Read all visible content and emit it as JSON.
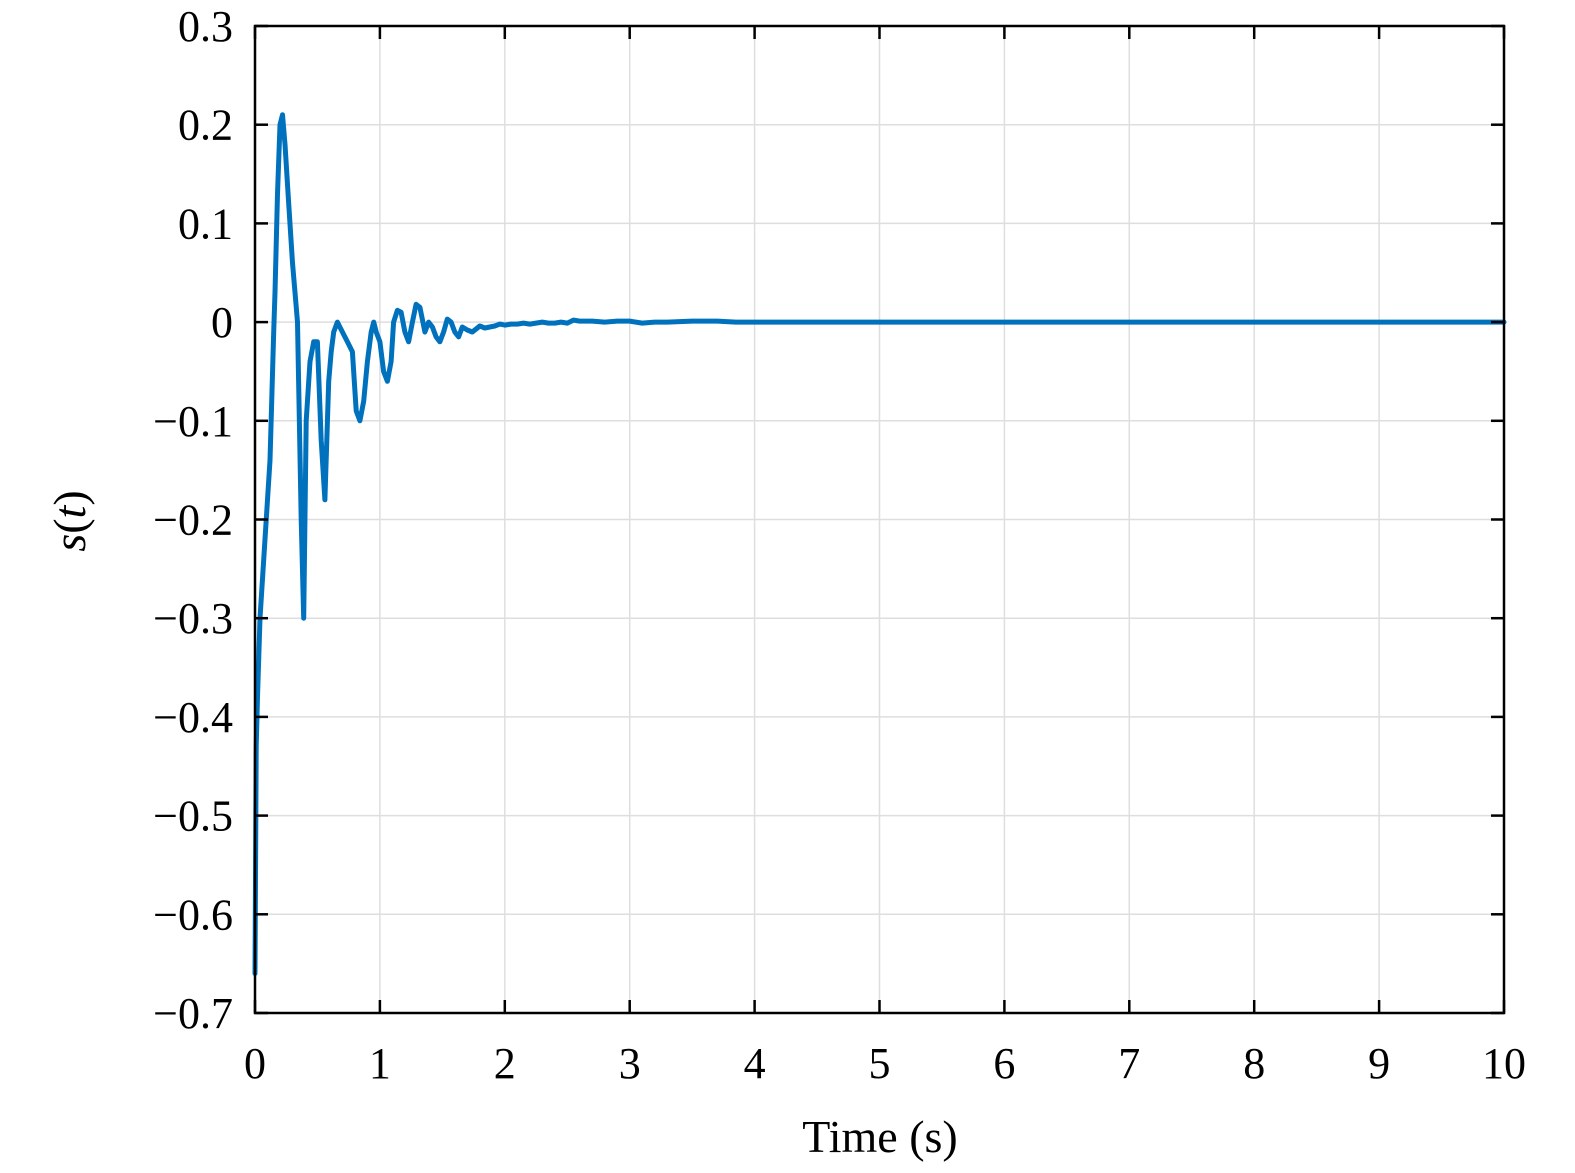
{
  "chart_data": {
    "type": "line",
    "title": "",
    "xlabel": "Time (s)",
    "ylabel": "s(t)",
    "ylabel_parts": {
      "func": "s",
      "open": "(",
      "var": "t",
      "close": ")"
    },
    "xlim": [
      0,
      10
    ],
    "ylim": [
      -0.7,
      0.3
    ],
    "xticks": [
      0,
      1,
      2,
      3,
      4,
      5,
      6,
      7,
      8,
      9,
      10
    ],
    "xtick_labels": [
      "0",
      "1",
      "2",
      "3",
      "4",
      "5",
      "6",
      "7",
      "8",
      "9",
      "10"
    ],
    "yticks": [
      0.3,
      0.2,
      0.1,
      0,
      -0.1,
      -0.2,
      -0.3,
      -0.4,
      -0.5,
      -0.6,
      -0.7
    ],
    "ytick_labels": [
      "0.3",
      "0.2",
      "0.1",
      "0",
      "−0.1",
      "−0.2",
      "−0.3",
      "−0.4",
      "−0.5",
      "−0.6",
      "−0.7"
    ],
    "grid": true,
    "line_color": "#0072BD",
    "series": [
      {
        "x": [
          0,
          0.01,
          0.02,
          0.04,
          0.08,
          0.12,
          0.15,
          0.16,
          0.18,
          0.2,
          0.22,
          0.24,
          0.27,
          0.3,
          0.34,
          0.37,
          0.39,
          0.41,
          0.44,
          0.47,
          0.5,
          0.53,
          0.56,
          0.59,
          0.61,
          0.63,
          0.66,
          0.7,
          0.74,
          0.78,
          0.81,
          0.84,
          0.87,
          0.9,
          0.93,
          0.95,
          0.97,
          1.0,
          1.03,
          1.06,
          1.09,
          1.11,
          1.14,
          1.17,
          1.2,
          1.23,
          1.26,
          1.29,
          1.32,
          1.36,
          1.39,
          1.42,
          1.45,
          1.48,
          1.51,
          1.54,
          1.57,
          1.6,
          1.63,
          1.66,
          1.7,
          1.74,
          1.77,
          1.8,
          1.84,
          1.88,
          1.92,
          1.96,
          2.0,
          2.05,
          2.1,
          2.15,
          2.2,
          2.25,
          2.3,
          2.35,
          2.4,
          2.45,
          2.5,
          2.55,
          2.6,
          2.7,
          2.8,
          2.9,
          3.0,
          3.05,
          3.1,
          3.2,
          3.3,
          3.5,
          3.7,
          3.85,
          4.0,
          4.5,
          5.0,
          6.0,
          7.0,
          8.0,
          9.0,
          10.0
        ],
        "y": [
          -0.66,
          -0.43,
          -0.38,
          -0.3,
          -0.22,
          -0.14,
          -0.01,
          0.03,
          0.13,
          0.2,
          0.21,
          0.18,
          0.12,
          0.06,
          0.0,
          -0.2,
          -0.3,
          -0.1,
          -0.04,
          -0.02,
          -0.02,
          -0.12,
          -0.18,
          -0.06,
          -0.03,
          -0.01,
          0.0,
          -0.01,
          -0.02,
          -0.03,
          -0.09,
          -0.1,
          -0.08,
          -0.04,
          -0.01,
          0.0,
          -0.01,
          -0.02,
          -0.05,
          -0.06,
          -0.04,
          0.0,
          0.012,
          0.01,
          -0.01,
          -0.02,
          0.0,
          0.018,
          0.015,
          -0.01,
          0.0,
          -0.005,
          -0.015,
          -0.02,
          -0.01,
          0.003,
          0.0,
          -0.01,
          -0.015,
          -0.005,
          -0.008,
          -0.01,
          -0.007,
          -0.004,
          -0.006,
          -0.005,
          -0.004,
          -0.002,
          -0.003,
          -0.002,
          -0.002,
          -0.001,
          -0.002,
          -0.001,
          0.0,
          -0.001,
          -0.001,
          0.0,
          -0.001,
          0.002,
          0.001,
          0.001,
          0.0,
          0.001,
          0.001,
          0.0,
          -0.001,
          0.0,
          0.0,
          0.001,
          0.001,
          0.0,
          0.0,
          0.0,
          0.0,
          0.0,
          0.0,
          0.0,
          0.0,
          0.0
        ]
      }
    ]
  }
}
